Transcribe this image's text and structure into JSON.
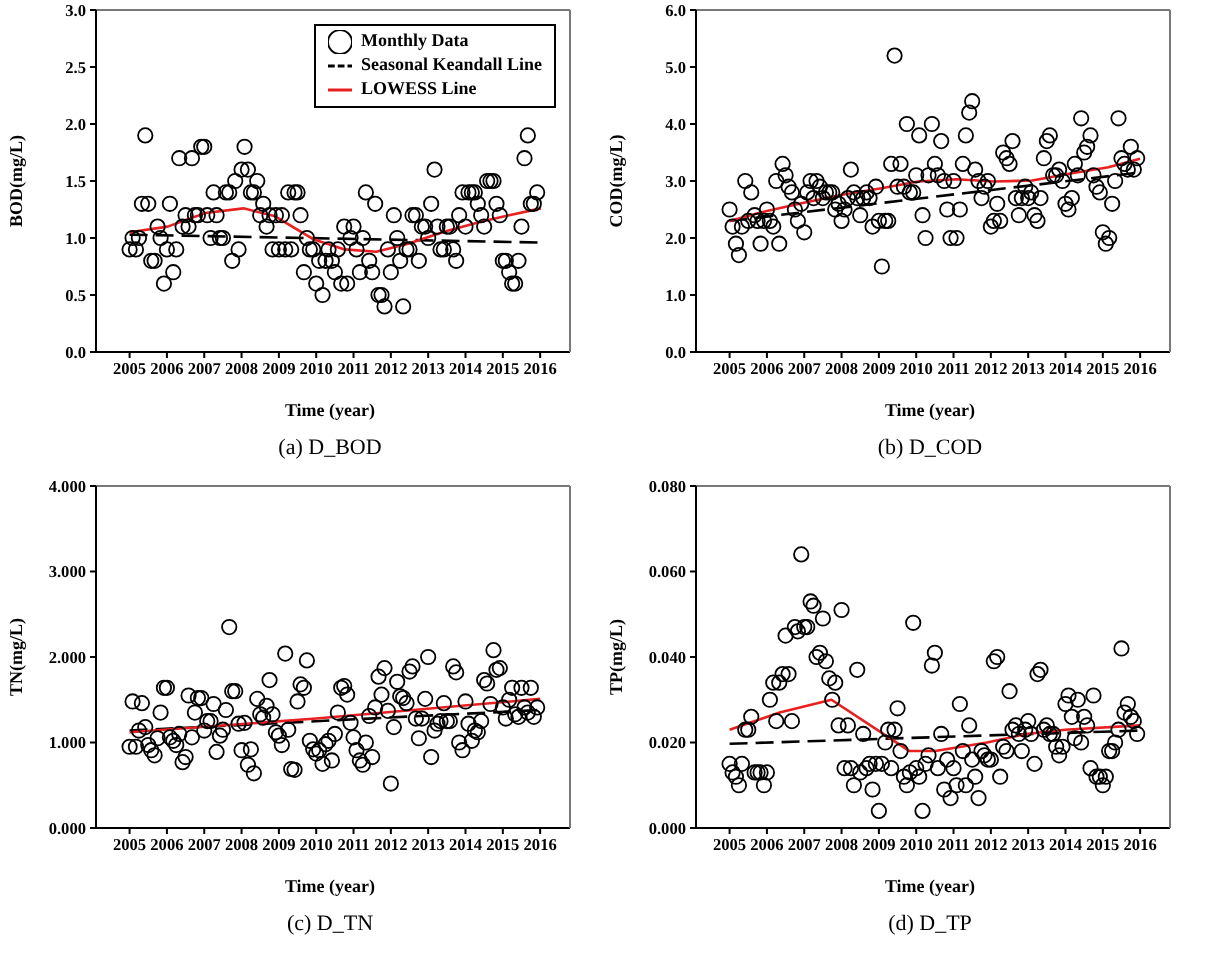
{
  "chart_data": [
    {
      "type": "scatter",
      "title": "(a) D_BOD",
      "xlabel": "Time (year)",
      "ylabel": "BOD(mg/L)",
      "xlim": [
        2004.1,
        2016.8
      ],
      "xticks": [
        2005,
        2006,
        2007,
        2008,
        2009,
        2010,
        2011,
        2012,
        2013,
        2014,
        2015,
        2016
      ],
      "ylim": [
        0,
        3
      ],
      "yticks": [
        {
          "value": 0,
          "label": "0.0"
        },
        {
          "value": 0.5,
          "label": "0.5"
        },
        {
          "value": 1,
          "label": "1.0"
        },
        {
          "value": 1.5,
          "label": "1.5"
        },
        {
          "value": 2,
          "label": "2.0"
        },
        {
          "value": 2.5,
          "label": "2.5"
        },
        {
          "value": 3,
          "label": "3.0"
        }
      ],
      "legend": "top right",
      "series": [
        {
          "name": "Monthly Data",
          "color": "#000000",
          "marker": "circle",
          "x": [
            2005,
            2005.08,
            2005.17,
            2005.25,
            2005.33,
            2005.42,
            2005.5,
            2005.58,
            2005.67,
            2005.75,
            2005.83,
            2005.92,
            2006,
            2006.08,
            2006.17,
            2006.25,
            2006.33,
            2006.42,
            2006.5,
            2006.58,
            2006.67,
            2006.75,
            2006.83,
            2006.92,
            2007,
            2007.08,
            2007.17,
            2007.25,
            2007.33,
            2007.42,
            2007.5,
            2007.58,
            2007.67,
            2007.75,
            2007.83,
            2007.92,
            2008,
            2008.08,
            2008.17,
            2008.25,
            2008.33,
            2008.42,
            2008.5,
            2008.58,
            2008.67,
            2008.75,
            2008.83,
            2008.92,
            2009,
            2009.08,
            2009.17,
            2009.25,
            2009.33,
            2009.42,
            2009.5,
            2009.58,
            2009.67,
            2009.75,
            2009.83,
            2009.92,
            2010,
            2010.08,
            2010.17,
            2010.25,
            2010.33,
            2010.42,
            2010.5,
            2010.58,
            2010.67,
            2010.75,
            2010.83,
            2010.92,
            2011,
            2011.08,
            2011.17,
            2011.25,
            2011.33,
            2011.42,
            2011.5,
            2011.58,
            2011.67,
            2011.75,
            2011.83,
            2011.92,
            2012,
            2012.08,
            2012.17,
            2012.25,
            2012.33,
            2012.42,
            2012.5,
            2012.58,
            2012.67,
            2012.75,
            2012.83,
            2012.92,
            2013,
            2013.08,
            2013.17,
            2013.25,
            2013.33,
            2013.42,
            2013.5,
            2013.58,
            2013.67,
            2013.75,
            2013.83,
            2013.92,
            2014,
            2014.08,
            2014.17,
            2014.25,
            2014.33,
            2014.42,
            2014.5,
            2014.58,
            2014.67,
            2014.75,
            2014.83,
            2014.92,
            2015,
            2015.08,
            2015.17,
            2015.25,
            2015.33,
            2015.42,
            2015.5,
            2015.58,
            2015.67,
            2015.75,
            2015.83,
            2015.92
          ],
          "values": [
            0.9,
            1.0,
            0.9,
            1.0,
            1.3,
            1.9,
            1.3,
            0.8,
            0.8,
            1.1,
            1.0,
            0.6,
            0.9,
            1.3,
            0.7,
            0.9,
            1.7,
            1.1,
            1.2,
            1.1,
            1.7,
            1.2,
            1.2,
            1.8,
            1.8,
            1.2,
            1.0,
            1.4,
            1.2,
            1.0,
            1.0,
            1.4,
            1.4,
            0.8,
            1.5,
            0.9,
            1.6,
            1.8,
            1.6,
            1.4,
            1.4,
            1.5,
            1.2,
            1.3,
            1.1,
            1.2,
            0.9,
            1.2,
            0.9,
            1.2,
            0.9,
            1.4,
            0.9,
            1.4,
            1.4,
            1.2,
            0.7,
            1.0,
            0.9,
            0.9,
            0.6,
            0.8,
            0.5,
            0.8,
            0.9,
            0.8,
            0.7,
            0.9,
            0.6,
            1.1,
            0.6,
            1.0,
            1.1,
            0.9,
            0.7,
            1.0,
            1.4,
            0.8,
            0.7,
            1.3,
            0.5,
            0.5,
            0.4,
            0.9,
            0.7,
            1.2,
            1.0,
            0.8,
            0.4,
            0.9,
            0.9,
            1.2,
            1.2,
            0.8,
            1.1,
            1.1,
            1.0,
            1.3,
            1.6,
            1.1,
            0.9,
            0.9,
            1.1,
            1.1,
            0.9,
            0.8,
            1.2,
            1.4,
            1.1,
            1.4,
            1.4,
            1.4,
            1.3,
            1.2,
            1.1,
            1.5,
            1.5,
            1.5,
            1.3,
            1.2,
            0.8,
            0.8,
            0.7,
            0.6,
            0.6,
            0.8,
            1.1,
            1.7,
            1.9,
            1.3,
            1.3,
            1.4
          ]
        },
        {
          "name": "Seasonal Keandall Line",
          "type": "line",
          "color": "#000000",
          "line_style": "dashed",
          "marker": "none",
          "x": [
            2005,
            2016
          ],
          "values": [
            1.03,
            0.96
          ]
        },
        {
          "name": "LOWESS Line",
          "type": "line",
          "color": "#e8201f",
          "line_style": "solid",
          "marker": "none",
          "x": [
            2005,
            2006.02,
            2007.03,
            2008.05,
            2008.9,
            2009.92,
            2010.76,
            2011.61,
            2012.46,
            2013.47,
            2014.49,
            2015.17,
            2016.02
          ],
          "values": [
            1.05,
            1.1,
            1.22,
            1.26,
            1.19,
            0.99,
            0.9,
            0.88,
            0.95,
            1.06,
            1.15,
            1.2,
            1.26
          ]
        }
      ]
    },
    {
      "type": "scatter",
      "title": "(b) D_COD",
      "xlabel": "Time (year)",
      "ylabel": "COD(mg/L)",
      "xlim": [
        2004.1,
        2016.8
      ],
      "xticks": [
        2005,
        2006,
        2007,
        2008,
        2009,
        2010,
        2011,
        2012,
        2013,
        2014,
        2015,
        2016
      ],
      "ylim": [
        0,
        6
      ],
      "yticks": [
        {
          "value": 0,
          "label": "0.0"
        },
        {
          "value": 1,
          "label": "1.0"
        },
        {
          "value": 2,
          "label": "2.0"
        },
        {
          "value": 3,
          "label": "3.0"
        },
        {
          "value": 4,
          "label": "4.0"
        },
        {
          "value": 5,
          "label": "5.0"
        },
        {
          "value": 6,
          "label": "6.0"
        }
      ],
      "series": [
        {
          "color": "#000000",
          "marker": "circle",
          "x": [
            2005,
            2005.08,
            2005.17,
            2005.25,
            2005.33,
            2005.42,
            2005.5,
            2005.58,
            2005.67,
            2005.75,
            2005.83,
            2005.92,
            2006,
            2006.08,
            2006.17,
            2006.25,
            2006.33,
            2006.42,
            2006.5,
            2006.58,
            2006.67,
            2006.75,
            2006.83,
            2006.92,
            2007,
            2007.08,
            2007.17,
            2007.25,
            2007.33,
            2007.42,
            2007.5,
            2007.58,
            2007.67,
            2007.75,
            2007.83,
            2007.92,
            2008,
            2008.08,
            2008.17,
            2008.25,
            2008.33,
            2008.42,
            2008.5,
            2008.58,
            2008.67,
            2008.75,
            2008.83,
            2008.92,
            2009,
            2009.08,
            2009.17,
            2009.25,
            2009.33,
            2009.42,
            2009.5,
            2009.58,
            2009.67,
            2009.75,
            2009.83,
            2009.92,
            2010,
            2010.08,
            2010.17,
            2010.25,
            2010.33,
            2010.42,
            2010.5,
            2010.58,
            2010.67,
            2010.75,
            2010.83,
            2010.92,
            2011,
            2011.08,
            2011.17,
            2011.25,
            2011.33,
            2011.42,
            2011.5,
            2011.58,
            2011.67,
            2011.75,
            2011.83,
            2011.92,
            2012,
            2012.08,
            2012.17,
            2012.25,
            2012.33,
            2012.42,
            2012.5,
            2012.58,
            2012.67,
            2012.75,
            2012.83,
            2012.92,
            2013,
            2013.08,
            2013.17,
            2013.25,
            2013.33,
            2013.42,
            2013.5,
            2013.58,
            2013.67,
            2013.75,
            2013.83,
            2013.92,
            2014,
            2014.08,
            2014.17,
            2014.25,
            2014.33,
            2014.42,
            2014.5,
            2014.58,
            2014.67,
            2014.75,
            2014.83,
            2014.92,
            2015,
            2015.08,
            2015.17,
            2015.25,
            2015.33,
            2015.42,
            2015.5,
            2015.58,
            2015.67,
            2015.75,
            2015.83,
            2015.92
          ],
          "values": [
            2.5,
            2.2,
            1.9,
            1.7,
            2.2,
            3.0,
            2.3,
            2.8,
            2.4,
            2.3,
            1.9,
            2.3,
            2.5,
            2.3,
            2.2,
            3.0,
            1.9,
            3.3,
            3.1,
            2.9,
            2.8,
            2.5,
            2.3,
            2.6,
            2.1,
            2.8,
            3.0,
            2.7,
            3.0,
            2.9,
            2.7,
            2.8,
            2.8,
            2.8,
            2.5,
            2.6,
            2.3,
            2.5,
            2.7,
            3.2,
            2.8,
            2.7,
            2.4,
            2.7,
            2.8,
            2.7,
            2.2,
            2.9,
            2.3,
            1.5,
            2.3,
            2.3,
            3.3,
            5.2,
            2.9,
            3.3,
            2.9,
            4.0,
            2.8,
            2.8,
            3.1,
            3.8,
            2.4,
            2.0,
            3.1,
            4.0,
            3.3,
            3.1,
            3.7,
            3.0,
            2.5,
            2.0,
            3.0,
            2.0,
            2.5,
            3.3,
            3.8,
            4.2,
            4.4,
            3.2,
            3.0,
            2.7,
            2.9,
            3.0,
            2.2,
            2.3,
            2.6,
            2.3,
            3.5,
            3.4,
            3.3,
            3.7,
            2.7,
            2.4,
            2.7,
            2.9,
            2.7,
            2.8,
            2.4,
            2.3,
            2.7,
            3.4,
            3.7,
            3.8,
            3.1,
            3.1,
            3.2,
            3.0,
            2.6,
            2.5,
            2.7,
            3.3,
            3.1,
            4.1,
            3.5,
            3.6,
            3.8,
            3.1,
            2.9,
            2.8,
            2.1,
            1.9,
            2.0,
            2.6,
            3.0,
            4.1,
            3.4,
            3.3,
            3.2,
            3.6,
            3.2,
            3.4
          ]
        },
        {
          "type": "line",
          "color": "#000000",
          "line_style": "dashed",
          "marker": "none",
          "x": [
            2005,
            2016
          ],
          "values": [
            2.3,
            3.15
          ]
        },
        {
          "type": "line",
          "color": "#e8201f",
          "line_style": "solid",
          "marker": "none",
          "x": [
            2005,
            2005.97,
            2006.99,
            2008.01,
            2009.03,
            2010.05,
            2011.07,
            2012.09,
            2013.11,
            2014.13,
            2015.15,
            2016
          ],
          "values": [
            2.3,
            2.47,
            2.62,
            2.76,
            2.87,
            2.99,
            3.03,
            2.99,
            3.01,
            3.13,
            3.24,
            3.39
          ]
        }
      ]
    },
    {
      "type": "scatter",
      "title": "(c) D_TN",
      "xlabel": "Time (year)",
      "ylabel": "TN(mg/L)",
      "xlim": [
        2004.1,
        2016.8
      ],
      "xticks": [
        2005,
        2006,
        2007,
        2008,
        2009,
        2010,
        2011,
        2012,
        2013,
        2014,
        2015,
        2016
      ],
      "ylim": [
        0,
        4
      ],
      "yticks": [
        {
          "value": 0,
          "label": "0.000"
        },
        {
          "value": 1,
          "label": "1.000"
        },
        {
          "value": 2,
          "label": "2.000"
        },
        {
          "value": 3,
          "label": "3.000"
        },
        {
          "value": 4,
          "label": "4.000"
        }
      ],
      "series": [
        {
          "color": "#000000",
          "marker": "circle",
          "x": [
            2005,
            2005.08,
            2005.17,
            2005.25,
            2005.33,
            2005.42,
            2005.5,
            2005.58,
            2005.67,
            2005.75,
            2005.83,
            2005.92,
            2006,
            2006.08,
            2006.17,
            2006.25,
            2006.33,
            2006.42,
            2006.5,
            2006.58,
            2006.67,
            2006.75,
            2006.83,
            2006.92,
            2007,
            2007.08,
            2007.17,
            2007.25,
            2007.33,
            2007.42,
            2007.5,
            2007.58,
            2007.67,
            2007.75,
            2007.83,
            2007.92,
            2008,
            2008.08,
            2008.17,
            2008.25,
            2008.33,
            2008.42,
            2008.5,
            2008.58,
            2008.67,
            2008.75,
            2008.83,
            2008.92,
            2009,
            2009.08,
            2009.17,
            2009.25,
            2009.33,
            2009.42,
            2009.5,
            2009.58,
            2009.67,
            2009.75,
            2009.83,
            2009.92,
            2010,
            2010.08,
            2010.17,
            2010.25,
            2010.33,
            2010.42,
            2010.5,
            2010.58,
            2010.67,
            2010.75,
            2010.83,
            2010.92,
            2011,
            2011.08,
            2011.17,
            2011.25,
            2011.33,
            2011.42,
            2011.5,
            2011.58,
            2011.67,
            2011.75,
            2011.83,
            2011.92,
            2012,
            2012.08,
            2012.17,
            2012.25,
            2012.33,
            2012.42,
            2012.5,
            2012.58,
            2012.67,
            2012.75,
            2012.83,
            2012.92,
            2013,
            2013.08,
            2013.17,
            2013.25,
            2013.33,
            2013.42,
            2013.5,
            2013.58,
            2013.67,
            2013.75,
            2013.83,
            2013.92,
            2014,
            2014.08,
            2014.17,
            2014.25,
            2014.33,
            2014.42,
            2014.5,
            2014.58,
            2014.67,
            2014.75,
            2014.83,
            2014.92,
            2015,
            2015.08,
            2015.17,
            2015.25,
            2015.33,
            2015.42,
            2015.5,
            2015.58,
            2015.67,
            2015.75,
            2015.83,
            2015.92
          ],
          "values": [
            0.95,
            1.48,
            0.95,
            1.14,
            1.46,
            1.18,
            0.97,
            0.91,
            0.85,
            1.05,
            1.35,
            1.64,
            1.64,
            1.06,
            1.02,
            0.97,
            1.1,
            0.77,
            0.83,
            1.55,
            1.06,
            1.35,
            1.52,
            1.52,
            1.14,
            1.25,
            1.25,
            1.45,
            0.89,
            1.08,
            1.15,
            1.38,
            2.35,
            1.6,
            1.6,
            1.22,
            0.91,
            1.23,
            0.74,
            0.92,
            0.64,
            1.51,
            1.33,
            1.29,
            1.43,
            1.73,
            1.33,
            1.12,
            1.08,
            0.97,
            2.04,
            1.15,
            0.69,
            0.68,
            1.48,
            1.68,
            1.64,
            1.96,
            1.02,
            0.92,
            0.87,
            0.91,
            0.75,
            0.98,
            1.02,
            0.79,
            1.1,
            1.35,
            1.64,
            1.66,
            1.56,
            1.23,
            1.06,
            0.91,
            0.79,
            0.74,
            1.0,
            1.31,
            0.83,
            1.41,
            1.77,
            1.56,
            1.87,
            1.37,
            0.52,
            1.18,
            1.71,
            1.54,
            1.52,
            1.46,
            1.83,
            1.89,
            1.28,
            1.05,
            1.28,
            1.51,
            2.0,
            0.83,
            1.14,
            1.22,
            1.25,
            1.46,
            1.25,
            1.25,
            1.89,
            1.82,
            1.0,
            0.91,
            1.48,
            1.22,
            1.02,
            1.14,
            1.12,
            1.25,
            1.73,
            1.69,
            1.45,
            2.08,
            1.85,
            1.87,
            1.41,
            1.28,
            1.5,
            1.64,
            1.33,
            1.3,
            1.64,
            1.41,
            1.35,
            1.64,
            1.3,
            1.41
          ]
        },
        {
          "type": "line",
          "color": "#000000",
          "line_style": "dashed",
          "marker": "none",
          "x": [
            2005,
            2016
          ],
          "values": [
            1.14,
            1.38
          ]
        },
        {
          "type": "line",
          "color": "#e8201f",
          "line_style": "solid",
          "marker": "none",
          "x": [
            2005,
            2010,
            2016
          ],
          "values": [
            1.12,
            1.28,
            1.51
          ]
        }
      ]
    },
    {
      "type": "scatter",
      "title": "(d) D_TP",
      "xlabel": "Time (year)",
      "ylabel": "TP(mg/L)",
      "xlim": [
        2004.1,
        2016.8
      ],
      "xticks": [
        2005,
        2006,
        2007,
        2008,
        2009,
        2010,
        2011,
        2012,
        2013,
        2014,
        2015,
        2016
      ],
      "ylim": [
        0,
        0.08
      ],
      "yticks": [
        {
          "value": 0,
          "label": "0.000"
        },
        {
          "value": 0.02,
          "label": "0.020"
        },
        {
          "value": 0.04,
          "label": "0.040"
        },
        {
          "value": 0.06,
          "label": "0.060"
        },
        {
          "value": 0.08,
          "label": "0.080"
        }
      ],
      "series": [
        {
          "color": "#000000",
          "marker": "circle",
          "x": [
            2005,
            2005.08,
            2005.17,
            2005.25,
            2005.33,
            2005.42,
            2005.5,
            2005.58,
            2005.67,
            2005.75,
            2005.83,
            2005.92,
            2006,
            2006.08,
            2006.17,
            2006.25,
            2006.33,
            2006.42,
            2006.5,
            2006.58,
            2006.67,
            2006.75,
            2006.83,
            2006.92,
            2007,
            2007.08,
            2007.17,
            2007.25,
            2007.33,
            2007.42,
            2007.5,
            2007.58,
            2007.67,
            2007.75,
            2007.83,
            2007.92,
            2008,
            2008.08,
            2008.17,
            2008.25,
            2008.33,
            2008.42,
            2008.5,
            2008.58,
            2008.67,
            2008.75,
            2008.83,
            2008.92,
            2009,
            2009.08,
            2009.17,
            2009.25,
            2009.33,
            2009.42,
            2009.5,
            2009.58,
            2009.67,
            2009.75,
            2009.83,
            2009.92,
            2010,
            2010.08,
            2010.17,
            2010.25,
            2010.33,
            2010.42,
            2010.5,
            2010.58,
            2010.67,
            2010.75,
            2010.83,
            2010.92,
            2011,
            2011.08,
            2011.17,
            2011.25,
            2011.33,
            2011.42,
            2011.5,
            2011.58,
            2011.67,
            2011.75,
            2011.83,
            2011.92,
            2012,
            2012.08,
            2012.17,
            2012.25,
            2012.33,
            2012.42,
            2012.5,
            2012.58,
            2012.67,
            2012.75,
            2012.83,
            2012.92,
            2013,
            2013.08,
            2013.17,
            2013.25,
            2013.33,
            2013.42,
            2013.5,
            2013.58,
            2013.67,
            2013.75,
            2013.83,
            2013.92,
            2014,
            2014.08,
            2014.17,
            2014.25,
            2014.33,
            2014.42,
            2014.5,
            2014.58,
            2014.67,
            2014.75,
            2014.83,
            2014.92,
            2015,
            2015.08,
            2015.17,
            2015.25,
            2015.33,
            2015.42,
            2015.5,
            2015.58,
            2015.67,
            2015.75,
            2015.83,
            2015.92
          ],
          "values": [
            0.015,
            0.013,
            0.012,
            0.01,
            0.015,
            0.023,
            0.023,
            0.026,
            0.013,
            0.013,
            0.013,
            0.01,
            0.013,
            0.03,
            0.034,
            0.025,
            0.034,
            0.036,
            0.045,
            0.036,
            0.025,
            0.047,
            0.046,
            0.064,
            0.047,
            0.047,
            0.053,
            0.052,
            0.04,
            0.041,
            0.049,
            0.039,
            0.035,
            0.03,
            0.034,
            0.024,
            0.051,
            0.014,
            0.024,
            0.014,
            0.01,
            0.037,
            0.013,
            0.022,
            0.014,
            0.015,
            0.009,
            0.015,
            0.004,
            0.015,
            0.02,
            0.023,
            0.014,
            0.023,
            0.028,
            0.018,
            0.012,
            0.01,
            0.013,
            0.048,
            0.014,
            0.012,
            0.004,
            0.015,
            0.017,
            0.038,
            0.041,
            0.014,
            0.022,
            0.009,
            0.016,
            0.007,
            0.014,
            0.01,
            0.029,
            0.018,
            0.01,
            0.024,
            0.016,
            0.012,
            0.007,
            0.018,
            0.017,
            0.016,
            0.016,
            0.039,
            0.04,
            0.012,
            0.019,
            0.018,
            0.032,
            0.023,
            0.024,
            0.022,
            0.018,
            0.023,
            0.025,
            0.022,
            0.015,
            0.036,
            0.037,
            0.023,
            0.024,
            0.022,
            0.022,
            0.019,
            0.017,
            0.019,
            0.029,
            0.031,
            0.026,
            0.021,
            0.03,
            0.02,
            0.026,
            0.024,
            0.014,
            0.031,
            0.012,
            0.012,
            0.01,
            0.012,
            0.018,
            0.018,
            0.02,
            0.023,
            0.042,
            0.027,
            0.029,
            0.026,
            0.025,
            0.022
          ]
        },
        {
          "type": "line",
          "color": "#000000",
          "line_style": "dashed",
          "marker": "none",
          "x": [
            2005,
            2016
          ],
          "values": [
            0.0197,
            0.0228
          ]
        },
        {
          "type": "line",
          "color": "#e8201f",
          "line_style": "solid",
          "marker": "none",
          "x": [
            2005,
            2006.34,
            2007.73,
            2009.12,
            2009.82,
            2010.51,
            2011.9,
            2012.95,
            2013.99,
            2015.99
          ],
          "values": [
            0.023,
            0.027,
            0.03,
            0.022,
            0.018,
            0.018,
            0.02,
            0.022,
            0.023,
            0.024
          ]
        }
      ]
    }
  ]
}
